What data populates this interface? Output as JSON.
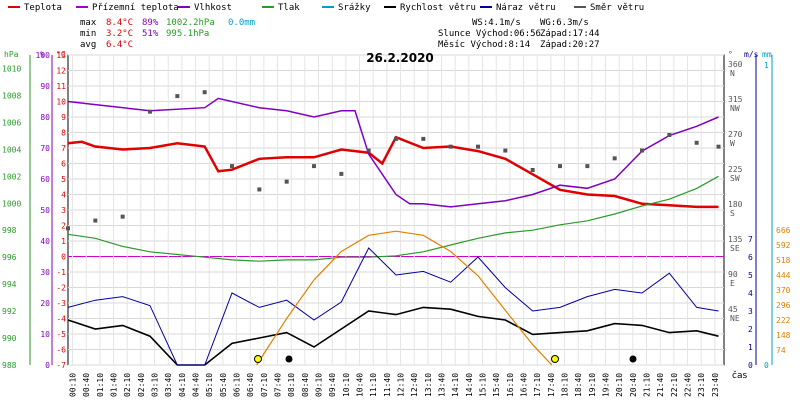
{
  "legend": [
    {
      "label": "Teplota",
      "color": "#e00000"
    },
    {
      "label": "Přízemní teplota",
      "color": "#a000d0"
    },
    {
      "label": "Vlhkost",
      "color": "#8000c0"
    },
    {
      "label": "Tlak",
      "color": "#2a9a2a"
    },
    {
      "label": "Srážky",
      "color": "#00a0c8"
    },
    {
      "label": "Rychlost větru",
      "color": "#000000"
    },
    {
      "label": "Náraz větru",
      "color": "#0000a0"
    },
    {
      "label": "Směr větru",
      "color": "#555555"
    }
  ],
  "stats": {
    "max_label": "max",
    "max_temp": "8.4°C",
    "max_hum": "89%",
    "max_press": "1002.2hPa",
    "max_rain": "0.0mm",
    "min_label": "min",
    "min_temp": "3.2°C",
    "min_hum": "51%",
    "min_press": "995.1hPa",
    "avg_label": "avg",
    "avg_temp": "6.4°C",
    "ws": "WS:4.1m/s",
    "wg": "WG:6.3m/s",
    "sun": "Slunce Východ:06:56",
    "sun_set": "Západ:17:44",
    "moon": "Měsíc  Východ:8:14",
    "moon_set": "Západ:20:27"
  },
  "chart_data": {
    "type": "line",
    "title": "26.2.2020",
    "x_axis_label": "čas",
    "x_ticks": [
      "00:10",
      "00:40",
      "01:10",
      "01:40",
      "02:10",
      "02:40",
      "03:10",
      "03:40",
      "04:10",
      "04:40",
      "05:10",
      "05:40",
      "06:10",
      "06:40",
      "07:10",
      "07:40",
      "08:10",
      "08:40",
      "09:10",
      "09:40",
      "10:10",
      "10:40",
      "11:10",
      "11:40",
      "12:10",
      "12:40",
      "13:10",
      "13:40",
      "14:10",
      "14:40",
      "15:10",
      "15:40",
      "16:10",
      "16:40",
      "17:10",
      "17:40",
      "18:10",
      "18:40",
      "19:10",
      "19:40",
      "20:10",
      "20:40",
      "21:10",
      "21:40",
      "22:10",
      "22:40",
      "23:10",
      "23:40"
    ],
    "axes": {
      "hpa": {
        "label": "hPa",
        "ticks": [
          "1010",
          "1008",
          "1006",
          "1004",
          "1002",
          "1000",
          "998",
          "996",
          "994",
          "992",
          "990",
          "988"
        ],
        "color": "#2a9a2a"
      },
      "percent": {
        "label": "%",
        "ticks": [
          "100",
          "90",
          "80",
          "70",
          "60",
          "50",
          "40",
          "30",
          "20",
          "10",
          "0"
        ],
        "color": "#8000c0"
      },
      "celsius": {
        "label": "°C",
        "ticks": [
          "13",
          "12",
          "11",
          "10",
          "9",
          "8",
          "7",
          "6",
          "5",
          "4",
          "3",
          "2",
          "1",
          "0",
          "-1",
          "-2",
          "-3",
          "-4",
          "-5",
          "-6",
          "-7"
        ],
        "color": "#e00000"
      },
      "direction": {
        "label": "°",
        "ticks": [
          "360",
          "315",
          "270",
          "225",
          "180",
          "135",
          "90",
          "45"
        ],
        "letters": [
          "N",
          "NW",
          "W",
          "SW",
          "S",
          "SE",
          "E",
          "NE"
        ],
        "color": "#555555"
      },
      "wind": {
        "label": "m/s",
        "ticks": [
          "7",
          "6",
          "5",
          "4",
          "3",
          "2",
          "1",
          "0"
        ],
        "color": "#000080"
      },
      "rain": {
        "label": "mm",
        "ticks": [
          "1",
          "0"
        ],
        "color": "#00a0c8"
      },
      "solar": {
        "ticks": [
          "666",
          "592",
          "518",
          "444",
          "370",
          "296",
          "222",
          "148",
          "74"
        ],
        "color": "#e08000"
      }
    },
    "series": [
      {
        "name": "Teplota",
        "color": "#e00000",
        "x": [
          0,
          0.5,
          1,
          2,
          3,
          4,
          5,
          5.5,
          6,
          7,
          8,
          9,
          10,
          11,
          11.5,
          12,
          13,
          14,
          15,
          16,
          17,
          18,
          19,
          20,
          21,
          22,
          23,
          23.8
        ],
        "y": [
          7.3,
          7.4,
          7.1,
          6.9,
          7.0,
          7.3,
          7.1,
          5.5,
          5.6,
          6.3,
          6.4,
          6.4,
          6.9,
          6.7,
          6.0,
          7.7,
          7.0,
          7.1,
          6.8,
          6.3,
          5.3,
          4.3,
          4.0,
          3.9,
          3.4,
          3.3,
          3.2,
          3.2
        ]
      },
      {
        "name": "Vlhkost",
        "color": "#8000c0",
        "x": [
          0,
          1,
          3,
          5,
          5.5,
          7,
          8,
          9,
          10,
          10.5,
          11,
          12,
          12.5,
          13,
          14,
          15,
          16,
          17,
          18,
          19,
          20,
          21,
          22,
          23,
          23.8
        ],
        "y": [
          85,
          84,
          82,
          83,
          86,
          83,
          82,
          80,
          82,
          82,
          68,
          55,
          52,
          52,
          51,
          52,
          53,
          55,
          58,
          57,
          60,
          69,
          74,
          77,
          80
        ]
      },
      {
        "name": "Tlak",
        "color": "#2a9a2a",
        "x": [
          0,
          1,
          2,
          3,
          4,
          5,
          6,
          7,
          8,
          9,
          10,
          11,
          12,
          13,
          14,
          15,
          16,
          17,
          18,
          19,
          20,
          21,
          22,
          23,
          23.8
        ],
        "y": [
          997.7,
          997.4,
          996.8,
          996.4,
          996.2,
          996.0,
          995.8,
          995.7,
          995.8,
          995.8,
          996.0,
          996.0,
          996.1,
          996.4,
          996.9,
          997.4,
          997.8,
          998.0,
          998.4,
          998.7,
          999.2,
          999.8,
          1000.3,
          1001.1,
          1002.0
        ]
      },
      {
        "name": "Rychlost větru",
        "color": "#000000",
        "x": [
          0,
          1,
          2,
          3,
          4,
          5,
          6,
          7,
          8,
          9,
          10,
          11,
          12,
          13,
          14,
          15,
          16,
          17,
          18,
          19,
          20,
          21,
          22,
          23,
          23.8
        ],
        "y": [
          2.5,
          2.0,
          2.2,
          1.6,
          0.0,
          0.0,
          1.2,
          1.5,
          1.8,
          1.0,
          2.0,
          3.0,
          2.8,
          3.2,
          3.1,
          2.7,
          2.5,
          1.7,
          1.8,
          1.9,
          2.3,
          2.2,
          1.8,
          1.9,
          1.6
        ]
      },
      {
        "name": "Náraz větru",
        "color": "#0000a0",
        "x": [
          0,
          1,
          2,
          3,
          4,
          5,
          6,
          7,
          8,
          9,
          10,
          11,
          12,
          13,
          14,
          15,
          16,
          17,
          18,
          19,
          20,
          21,
          22,
          23,
          23.8
        ],
        "y": [
          3.2,
          3.6,
          3.8,
          3.3,
          0.0,
          0.0,
          4.0,
          3.2,
          3.6,
          2.5,
          3.5,
          6.5,
          5.0,
          5.2,
          4.6,
          6.0,
          4.3,
          3.0,
          3.2,
          3.8,
          4.2,
          4.0,
          5.1,
          3.2,
          3.0
        ]
      },
      {
        "name": "Směr větru",
        "color": "#555555",
        "x": [
          0,
          1,
          2,
          3,
          4,
          5,
          6,
          7,
          8,
          9,
          10,
          11,
          12,
          13,
          14,
          15,
          16,
          17,
          18,
          19,
          20,
          21,
          22,
          23,
          23.8
        ],
        "y": [
          150,
          160,
          165,
          300,
          320,
          325,
          230,
          200,
          210,
          230,
          220,
          250,
          265,
          265,
          255,
          255,
          250,
          225,
          230,
          230,
          240,
          250,
          270,
          260,
          255
        ]
      },
      {
        "name": "Solar",
        "color": "#e08000",
        "x": [
          6.9,
          8,
          9,
          10,
          11,
          12,
          13,
          14,
          15,
          16,
          17,
          17.7
        ],
        "y": [
          0,
          230,
          420,
          560,
          640,
          660,
          640,
          560,
          440,
          270,
          100,
          0
        ]
      }
    ],
    "xlim": [
      0,
      24
    ],
    "ylim_celsius": [
      -7,
      13
    ],
    "grid": true
  }
}
